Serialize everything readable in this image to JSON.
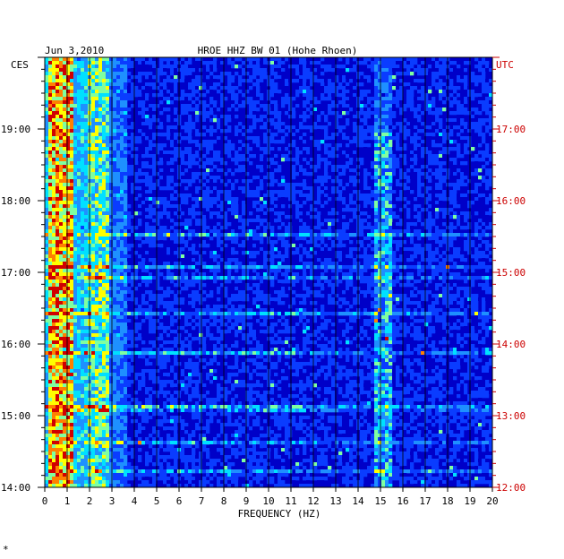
{
  "chart_data": {
    "type": "heatmap",
    "title_date": "Jun 3,2010",
    "title_station": "HROE HHZ BW 01 (Hohe Rhoen)",
    "xlabel": "FREQUENCY (HZ)",
    "x_ticks": [
      "0",
      "1",
      "2",
      "3",
      "4",
      "5",
      "6",
      "7",
      "8",
      "9",
      "10",
      "11",
      "12",
      "13",
      "14",
      "15",
      "16",
      "17",
      "18",
      "19",
      "20"
    ],
    "xlim": [
      0,
      20
    ],
    "left_timezone": "CES",
    "right_timezone": "UTC",
    "left_time_labels": [
      "19:00",
      "18:00",
      "17:00",
      "16:00",
      "15:00",
      "14:00"
    ],
    "right_time_labels": [
      "17:00",
      "16:00",
      "15:00",
      "14:00",
      "13:00",
      "12:00"
    ],
    "time_range_hours_ces": [
      14.0,
      20.0
    ],
    "colormap": [
      "#000080",
      "#0000c8",
      "#0a3cff",
      "#1e90ff",
      "#00e0ff",
      "#7fffa0",
      "#ffff00",
      "#ff8000",
      "#d00000"
    ],
    "strong_band_hz": [
      0.2,
      1.2
    ],
    "secondary_band_hz": [
      2.0,
      2.9
    ],
    "feature_band_hz": [
      14.8,
      15.6
    ],
    "right_label_color": "#cc0000",
    "footer_mark": "*"
  }
}
